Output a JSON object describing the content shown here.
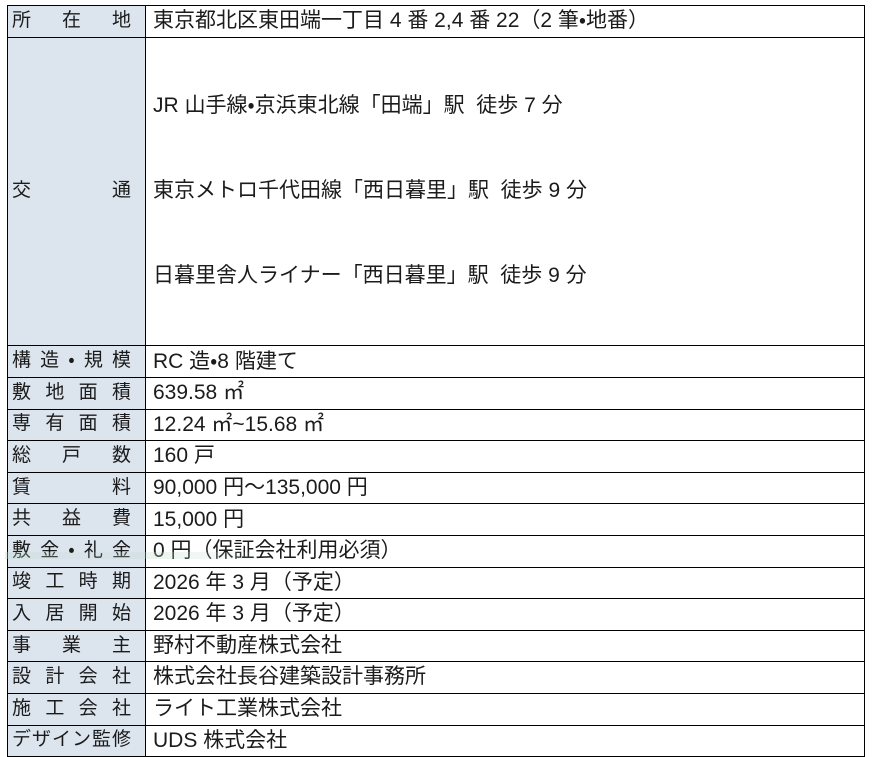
{
  "colors": {
    "label_bg": "#dce4ee",
    "border": "#000000",
    "text": "#1b1b1b",
    "page_bg": "#ffffff"
  },
  "table": {
    "rows": [
      {
        "label": "所在地",
        "value": "東京都北区東田端一丁目 4 番 2,4 番 22（2 筆・地番）"
      },
      {
        "label": "交通",
        "value_lines": [
          "JR 山手線・京浜東北線「田端」駅  徒歩 7 分",
          "東京メトロ千代田線「西日暮里」駅  徒歩 9 分",
          "日暮里舎人ライナー「西日暮里」駅  徒歩 9 分"
        ]
      },
      {
        "label": "構造・規模",
        "value": "RC 造・8 階建て"
      },
      {
        "label": "敷地面積",
        "value": "639.58 ㎡"
      },
      {
        "label": "専有面積",
        "value": "12.24 ㎡~15.68 ㎡"
      },
      {
        "label": "総戸数",
        "value": "160 戸"
      },
      {
        "label": "賃料",
        "value": "90,000 円～135,000 円"
      },
      {
        "label": "共益費",
        "value": "15,000 円"
      },
      {
        "label": "敷金・礼金",
        "value": "0 円（保証会社利用必須）"
      },
      {
        "label": "竣工時期",
        "value": "2026 年 3 月（予定）"
      },
      {
        "label": "入居開始",
        "value": "2026 年 3 月（予定）"
      },
      {
        "label": "事業主",
        "value": "野村不動産株式会社"
      },
      {
        "label": "設計会社",
        "value": "株式会社長谷建築設計事務所"
      },
      {
        "label": "施工会社",
        "value": "ライト工業株式会社"
      },
      {
        "label": "デザイン監修",
        "value": "UDS 株式会社"
      }
    ]
  }
}
